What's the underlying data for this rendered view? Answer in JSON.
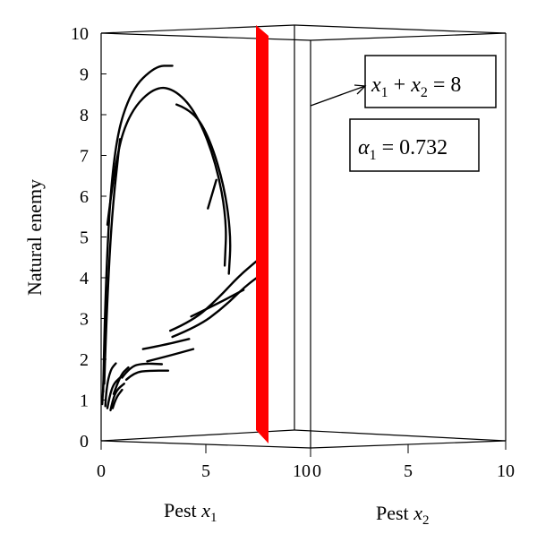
{
  "chart_data": {
    "type": "line",
    "projection": "3d",
    "title": "",
    "axes": {
      "x1": {
        "label": "Pest",
        "symbol": "x",
        "subscript": "1",
        "range": [
          0,
          10
        ],
        "ticks": [
          "0",
          "5",
          "10"
        ]
      },
      "x2": {
        "label": "Pest",
        "symbol": "x",
        "subscript": "2",
        "range": [
          0,
          10
        ],
        "ticks": [
          "0",
          "5",
          "10"
        ]
      },
      "y": {
        "label": "Natural enemy",
        "range": [
          0,
          10
        ],
        "ticks": [
          "0",
          "1",
          "2",
          "3",
          "4",
          "5",
          "6",
          "7",
          "8",
          "9",
          "10"
        ]
      }
    },
    "plane": {
      "equation": {
        "lhs": "x",
        "s1": "1",
        "plus": "+",
        "s2": "2",
        "rhs": "= 8"
      },
      "color": "#ff0000",
      "x1_value": 8
    },
    "parameter": {
      "symbol": "α",
      "subscript": "1",
      "value": "= 0.732"
    },
    "trajectories": [
      {
        "points": [
          [
            0.1,
            1.2
          ],
          [
            0.2,
            4.0
          ],
          [
            0.6,
            7.2
          ],
          [
            1.4,
            8.6
          ],
          [
            2.6,
            9.2
          ],
          [
            3.4,
            9.2
          ]
        ]
      },
      {
        "points": [
          [
            0.3,
            5.3
          ],
          [
            0.7,
            7.0
          ],
          [
            1.4,
            8.1
          ],
          [
            2.6,
            8.7
          ],
          [
            3.6,
            8.6
          ],
          [
            4.6,
            8.0
          ],
          [
            5.5,
            6.8
          ],
          [
            6.0,
            5.4
          ],
          [
            5.9,
            4.3
          ]
        ]
      },
      {
        "points": [
          [
            3.6,
            8.25
          ],
          [
            4.4,
            8.1
          ],
          [
            5.2,
            7.4
          ],
          [
            5.9,
            6.2
          ],
          [
            6.2,
            5.0
          ],
          [
            6.1,
            4.1
          ]
        ]
      },
      {
        "points": [
          [
            5.1,
            5.7
          ],
          [
            5.5,
            6.4
          ]
        ]
      },
      {
        "points": [
          [
            0.15,
            1.4
          ],
          [
            0.25,
            3.0
          ],
          [
            0.5,
            5.5
          ],
          [
            0.9,
            7.4
          ]
        ]
      },
      {
        "points": [
          [
            3.3,
            2.7
          ],
          [
            4.4,
            2.95
          ],
          [
            5.6,
            3.5
          ],
          [
            6.6,
            4.05
          ],
          [
            7.4,
            4.4
          ]
        ]
      },
      {
        "points": [
          [
            3.4,
            2.55
          ],
          [
            4.6,
            2.8
          ],
          [
            5.8,
            3.25
          ],
          [
            6.9,
            3.8
          ],
          [
            7.7,
            4.1
          ]
        ]
      },
      {
        "points": [
          [
            4.3,
            3.05
          ],
          [
            5.5,
            3.35
          ],
          [
            6.8,
            3.7
          ]
        ]
      },
      {
        "points": [
          [
            2.0,
            2.25
          ],
          [
            3.0,
            2.35
          ],
          [
            4.2,
            2.5
          ]
        ]
      },
      {
        "points": [
          [
            2.2,
            1.95
          ],
          [
            3.2,
            2.08
          ],
          [
            4.4,
            2.25
          ]
        ]
      },
      {
        "points": [
          [
            1.0,
            1.55
          ],
          [
            1.4,
            1.82
          ],
          [
            2.0,
            1.9
          ],
          [
            2.9,
            1.88
          ]
        ]
      },
      {
        "points": [
          [
            1.2,
            1.5
          ],
          [
            1.6,
            1.68
          ],
          [
            2.3,
            1.72
          ],
          [
            3.2,
            1.72
          ]
        ]
      },
      {
        "points": [
          [
            0.6,
            1.15
          ],
          [
            0.9,
            1.6
          ],
          [
            1.3,
            1.8
          ]
        ]
      },
      {
        "points": [
          [
            0.2,
            0.85
          ],
          [
            0.25,
            1.3
          ],
          [
            0.45,
            1.75
          ],
          [
            0.7,
            1.9
          ]
        ]
      },
      {
        "points": [
          [
            0.3,
            0.8
          ],
          [
            0.4,
            1.1
          ],
          [
            0.6,
            1.4
          ],
          [
            0.9,
            1.55
          ]
        ]
      },
      {
        "points": [
          [
            0.45,
            0.75
          ],
          [
            0.55,
            1.0
          ],
          [
            0.75,
            1.25
          ],
          [
            1.1,
            1.4
          ]
        ]
      },
      {
        "points": [
          [
            0.55,
            0.8
          ],
          [
            0.7,
            1.05
          ],
          [
            1.0,
            1.25
          ]
        ]
      },
      {
        "points": [
          [
            0.05,
            0.9
          ],
          [
            0.1,
            1.3
          ],
          [
            0.15,
            1.8
          ]
        ]
      },
      {
        "points": [
          [
            7.6,
            4.35
          ],
          [
            7.9,
            4.5
          ]
        ]
      },
      {
        "points": [
          [
            7.6,
            3.75
          ],
          [
            7.9,
            3.9
          ]
        ]
      }
    ]
  }
}
